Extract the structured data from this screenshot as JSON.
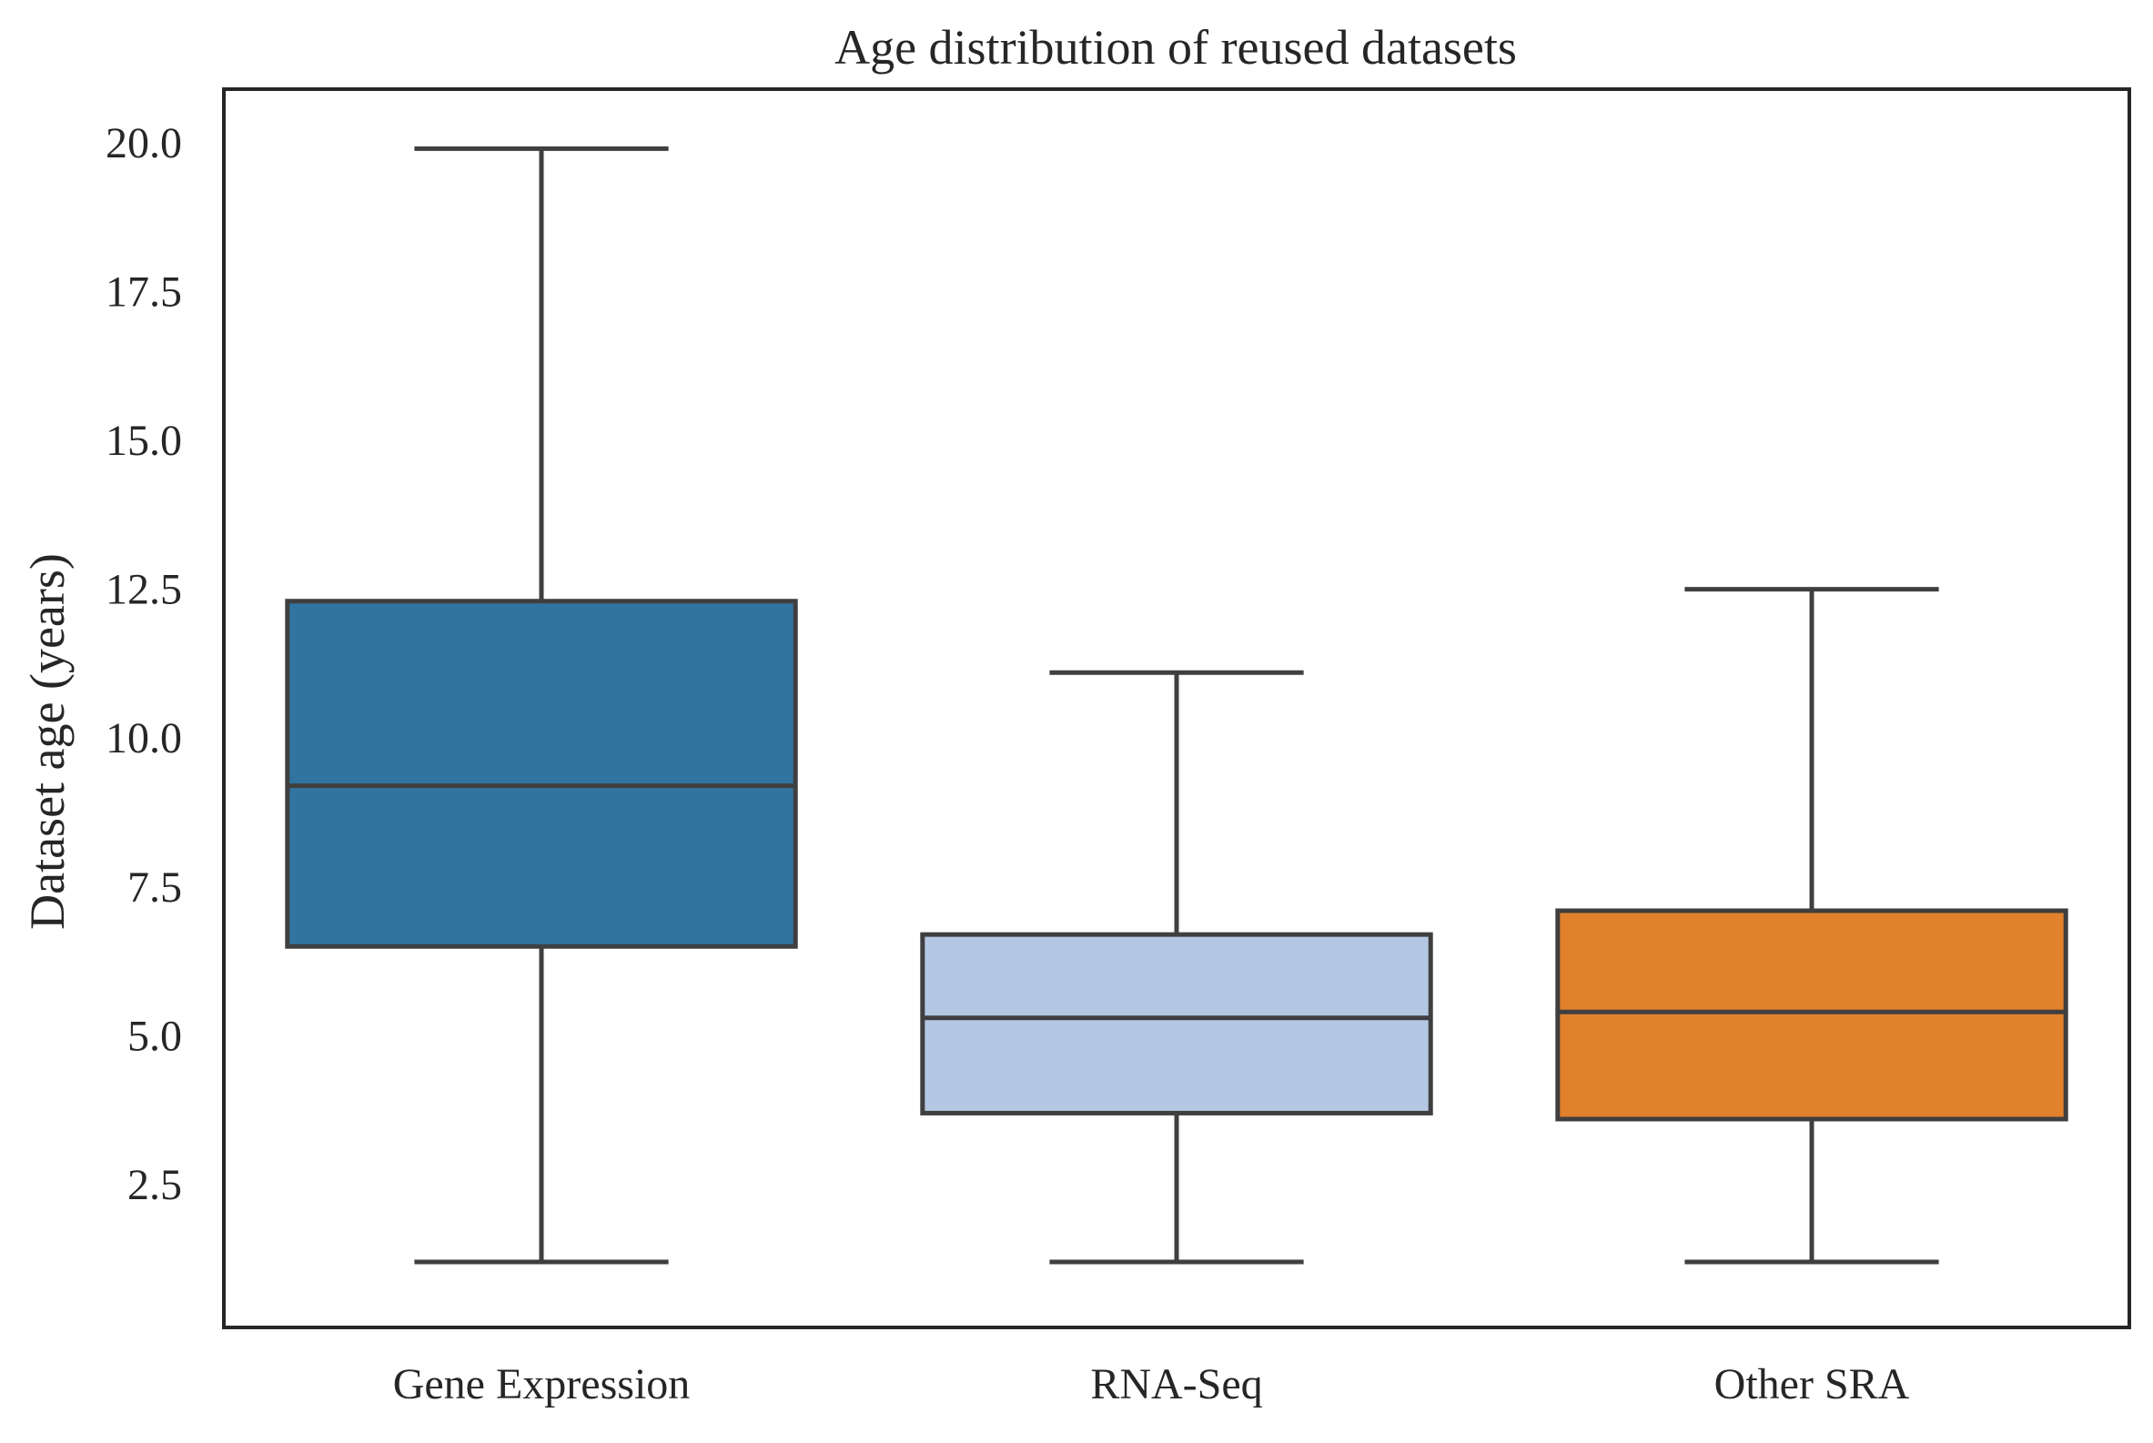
{
  "chart_data": {
    "type": "box",
    "title": "Age distribution of reused datasets",
    "xlabel": "",
    "ylabel": "Dataset age (years)",
    "ylim": [
      0.1,
      20.9
    ],
    "yticks": [
      2.5,
      5.0,
      7.5,
      10.0,
      12.5,
      15.0,
      17.5,
      20.0
    ],
    "ytick_labels": [
      "2.5",
      "5.0",
      "7.5",
      "10.0",
      "12.5",
      "15.0",
      "17.5",
      "20.0"
    ],
    "grid": false,
    "categories": [
      "Gene Expression",
      "RNA-Seq",
      "Other SRA"
    ],
    "boxes": [
      {
        "category": "Gene Expression",
        "whisker_low": 1.2,
        "q1": 6.5,
        "median": 9.2,
        "q3": 12.3,
        "whisker_high": 19.9,
        "color": "#3274a1"
      },
      {
        "category": "RNA-Seq",
        "whisker_low": 1.2,
        "q1": 3.7,
        "median": 5.3,
        "q3": 6.7,
        "whisker_high": 11.1,
        "color": "#b4c8e3"
      },
      {
        "category": "Other SRA",
        "whisker_low": 1.2,
        "q1": 3.6,
        "median": 5.4,
        "q3": 7.1,
        "whisker_high": 12.5,
        "color": "#e1812c"
      }
    ],
    "line_color": "#3f3f3f",
    "frame_color": "#262626"
  }
}
